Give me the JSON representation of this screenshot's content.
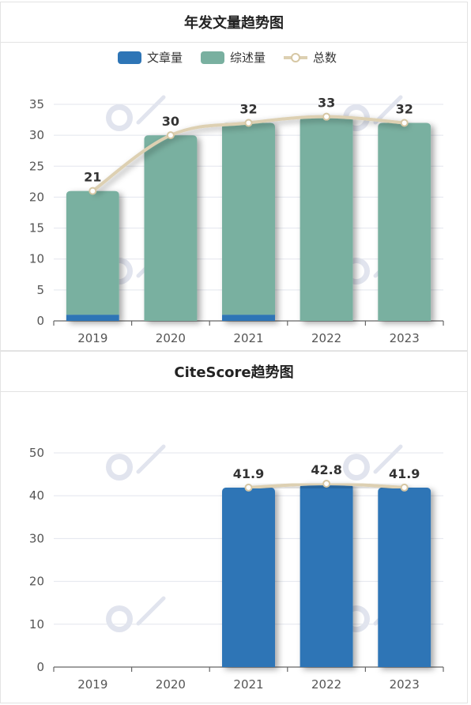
{
  "panels": [
    {
      "title": "年发文量趋势图",
      "chart_data": {
        "type": "bar",
        "stacked": true,
        "categories": [
          "2019",
          "2020",
          "2021",
          "2022",
          "2023"
        ],
        "series": [
          {
            "name": "文章量",
            "type": "bar",
            "color": "#2e75b6",
            "values": [
              1,
              0,
              1,
              0,
              0
            ]
          },
          {
            "name": "综述量",
            "type": "bar",
            "color": "#79b0a0",
            "values": [
              20,
              30,
              31,
              33,
              32
            ]
          },
          {
            "name": "总数",
            "type": "line",
            "color": "#e6d9bd",
            "values": [
              21,
              30,
              32,
              33,
              32
            ]
          }
        ],
        "data_labels": [
          "21",
          "30",
          "32",
          "33",
          "32"
        ],
        "ylim": [
          0,
          35
        ],
        "yticks": [
          0,
          5,
          10,
          15,
          20,
          25,
          30,
          35
        ],
        "grid": true,
        "legend": "top-center"
      }
    },
    {
      "title": "CiteScore趋势图",
      "chart_data": {
        "type": "bar",
        "categories": [
          "2019",
          "2020",
          "2021",
          "2022",
          "2023"
        ],
        "series": [
          {
            "type": "bar",
            "color": "#2e75b6",
            "values": [
              null,
              null,
              41.9,
              42.8,
              41.9
            ]
          },
          {
            "type": "line",
            "color": "#e6d9bd",
            "values": [
              null,
              null,
              41.9,
              42.8,
              41.9
            ]
          }
        ],
        "data_labels": [
          "",
          "",
          "41.9",
          "42.8",
          "41.9"
        ],
        "ylim": [
          0,
          50
        ],
        "yticks": [
          0,
          10,
          20,
          30,
          40,
          50
        ],
        "grid": true,
        "legend": "none"
      }
    }
  ]
}
